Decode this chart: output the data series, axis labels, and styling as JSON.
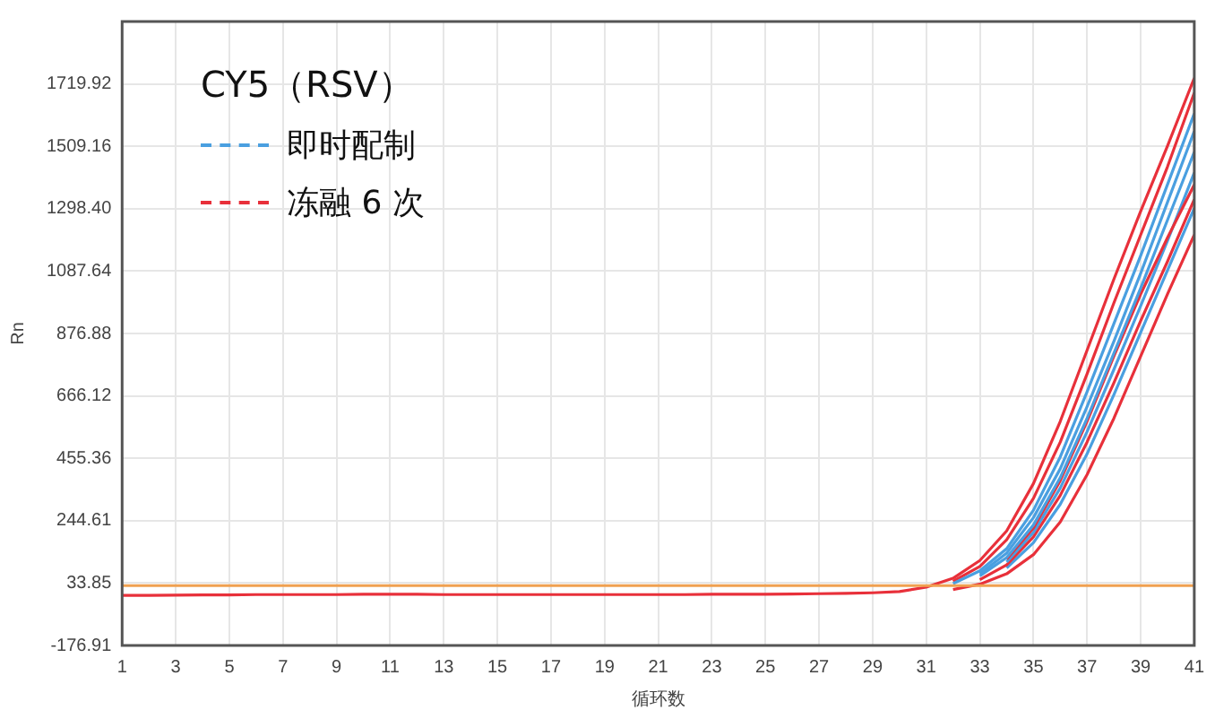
{
  "chart_data": {
    "type": "line",
    "legend_title": "CY5（RSV）",
    "xlabel": "循环数",
    "ylabel": "Rn",
    "x": [
      1,
      2,
      3,
      4,
      5,
      6,
      7,
      8,
      9,
      10,
      11,
      12,
      13,
      14,
      15,
      16,
      17,
      18,
      19,
      20,
      21,
      22,
      23,
      24,
      25,
      26,
      27,
      28,
      29,
      30,
      31,
      32,
      33,
      34,
      35,
      36,
      37,
      38,
      39,
      40,
      41
    ],
    "xlim": [
      1,
      41
    ],
    "xticks": [
      1,
      3,
      5,
      7,
      9,
      11,
      13,
      15,
      17,
      19,
      21,
      23,
      25,
      27,
      29,
      31,
      33,
      35,
      37,
      39,
      41
    ],
    "ylim": [
      -176.91,
      1930.68
    ],
    "yticks": [
      -176.91,
      33.85,
      244.61,
      455.36,
      666.12,
      876.88,
      1087.64,
      {
        "value": 1298.4,
        "label": "1298.40"
      },
      1509.16,
      1719.92
    ],
    "grid": true,
    "legend": "top left",
    "marker": "none",
    "line_style": "solid",
    "ref_lines": [
      {
        "axis": "y",
        "value": 25,
        "color": "#f0a050"
      }
    ],
    "series": [
      {
        "name": "即时配制",
        "color": "#4a9fe0",
        "values": [
          null,
          null,
          null,
          null,
          null,
          null,
          null,
          null,
          null,
          null,
          null,
          null,
          null,
          null,
          null,
          null,
          null,
          null,
          null,
          null,
          null,
          null,
          null,
          null,
          null,
          null,
          null,
          null,
          null,
          null,
          null,
          32,
          75,
          150,
          280,
          460,
          680,
          910,
          1140,
          1380,
          1620
        ]
      },
      {
        "name": "冻融 6 次",
        "color": "#e8303a",
        "values": [
          -8,
          -8,
          -7,
          -6,
          -6,
          -5,
          -5,
          -5,
          -5,
          -4,
          -4,
          -4,
          -5,
          -5,
          -5,
          -5,
          -5,
          -5,
          -5,
          -5,
          -5,
          -5,
          -4,
          -4,
          -4,
          -3,
          -2,
          -1,
          1,
          5,
          20,
          50,
          110,
          210,
          370,
          580,
          820,
          1060,
          1290,
          1510,
          1740
        ]
      },
      {
        "color": "#4a9fe0",
        "values": [
          null,
          null,
          null,
          null,
          null,
          null,
          null,
          null,
          null,
          null,
          null,
          null,
          null,
          null,
          null,
          null,
          null,
          null,
          null,
          null,
          null,
          null,
          null,
          null,
          null,
          null,
          null,
          null,
          null,
          null,
          null,
          null,
          65,
          135,
          255,
          420,
          630,
          850,
          1080,
          1320,
          1560
        ]
      },
      {
        "color": "#e8303a",
        "values": [
          null,
          null,
          null,
          null,
          null,
          null,
          null,
          null,
          null,
          null,
          null,
          null,
          null,
          null,
          null,
          null,
          null,
          null,
          null,
          null,
          null,
          null,
          null,
          null,
          null,
          null,
          null,
          null,
          null,
          null,
          null,
          40,
          90,
          180,
          320,
          510,
          740,
          980,
          1210,
          1440,
          1690
        ]
      },
      {
        "color": "#4a9fe0",
        "values": [
          null,
          null,
          null,
          null,
          null,
          null,
          null,
          null,
          null,
          null,
          null,
          null,
          null,
          null,
          null,
          null,
          null,
          null,
          null,
          null,
          null,
          null,
          null,
          null,
          null,
          null,
          null,
          null,
          null,
          null,
          null,
          null,
          58,
          120,
          230,
          390,
          590,
          810,
          1030,
          1260,
          1490
        ]
      },
      {
        "color": "#e8303a",
        "values": [
          null,
          null,
          null,
          null,
          null,
          null,
          null,
          null,
          null,
          null,
          null,
          null,
          null,
          null,
          null,
          null,
          null,
          null,
          null,
          null,
          null,
          null,
          null,
          null,
          null,
          null,
          null,
          null,
          null,
          null,
          null,
          null,
          null,
          115,
          220,
          380,
          580,
          800,
          1010,
          1200,
          1380
        ]
      },
      {
        "color": "#4a9fe0",
        "values": [
          null,
          null,
          null,
          null,
          null,
          null,
          null,
          null,
          null,
          null,
          null,
          null,
          null,
          null,
          null,
          null,
          null,
          null,
          null,
          null,
          null,
          null,
          null,
          null,
          null,
          null,
          null,
          null,
          null,
          null,
          null,
          null,
          null,
          105,
          205,
          355,
          545,
          755,
          970,
          1190,
          1420
        ]
      },
      {
        "color": "#e8303a",
        "values": [
          null,
          null,
          null,
          null,
          null,
          null,
          null,
          null,
          null,
          null,
          null,
          null,
          null,
          null,
          null,
          null,
          null,
          null,
          null,
          null,
          null,
          null,
          null,
          null,
          null,
          null,
          null,
          null,
          null,
          null,
          null,
          null,
          45,
          95,
          190,
          330,
          510,
          710,
          920,
          1120,
          1330
        ]
      },
      {
        "color": "#4a9fe0",
        "values": [
          null,
          null,
          null,
          null,
          null,
          null,
          null,
          null,
          null,
          null,
          null,
          null,
          null,
          null,
          null,
          null,
          null,
          null,
          null,
          null,
          null,
          null,
          null,
          null,
          null,
          null,
          null,
          null,
          null,
          null,
          null,
          null,
          null,
          85,
          170,
          300,
          470,
          670,
          880,
          1090,
          1300
        ]
      },
      {
        "color": "#e8303a",
        "values": [
          null,
          null,
          null,
          null,
          null,
          null,
          null,
          null,
          null,
          null,
          null,
          null,
          null,
          null,
          null,
          null,
          null,
          null,
          null,
          null,
          null,
          null,
          null,
          null,
          null,
          null,
          null,
          null,
          null,
          null,
          null,
          12,
          30,
          65,
          130,
          240,
          400,
          590,
          800,
          1010,
          1210
        ]
      }
    ]
  }
}
